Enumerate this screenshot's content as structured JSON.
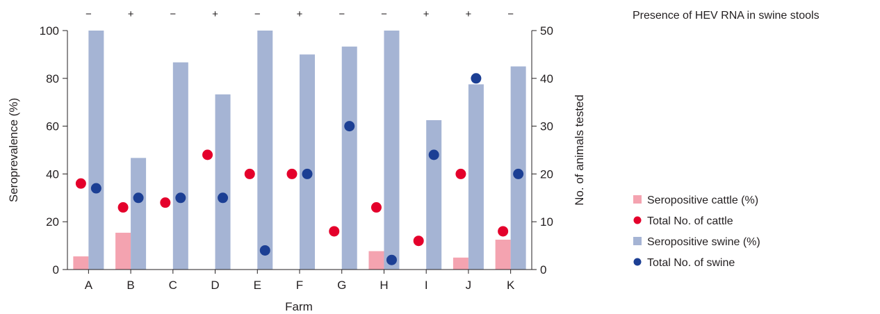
{
  "chart_data": {
    "type": "bar",
    "categories": [
      "A",
      "B",
      "C",
      "D",
      "E",
      "F",
      "G",
      "H",
      "I",
      "J",
      "K"
    ],
    "hev_rna_title": "Presence of HEV RNA in swine stools",
    "hev_rna_signs": [
      "−",
      "+",
      "−",
      "+",
      "−",
      "+",
      "−",
      "−",
      "+",
      "+",
      "−"
    ],
    "xlabel": "Farm",
    "ylabel": "Seroprevalence (%)",
    "y2label": "No. of animals tested",
    "ylim": [
      0,
      100
    ],
    "y2lim": [
      0,
      50
    ],
    "yticks": [
      0,
      20,
      40,
      60,
      80,
      100
    ],
    "y2ticks": [
      0,
      10,
      20,
      30,
      40,
      50
    ],
    "series": [
      {
        "name": "Seropositive cattle (%)",
        "type": "bar",
        "axis": "left",
        "color": "#f4a3b0",
        "values": [
          5.5,
          15.4,
          0,
          0,
          0,
          0,
          0,
          7.7,
          0,
          5,
          12.5
        ]
      },
      {
        "name": "Total No. of cattle",
        "type": "scatter",
        "axis": "right",
        "color": "#e4002b",
        "values": [
          18,
          13,
          14,
          24,
          20,
          20,
          8,
          13,
          6,
          20,
          8
        ]
      },
      {
        "name": "Seropositive swine (%)",
        "type": "bar",
        "axis": "left",
        "color": "#a5b4d4",
        "values": [
          100,
          46.7,
          86.7,
          73.3,
          100,
          90,
          93.3,
          100,
          62.5,
          77.5,
          85
        ]
      },
      {
        "name": "Total No. of swine",
        "type": "scatter",
        "axis": "right",
        "color": "#1c3f94",
        "values": [
          17,
          15,
          15,
          15,
          4,
          20,
          30,
          2,
          24,
          40,
          20
        ]
      }
    ],
    "legend_position": "right"
  }
}
